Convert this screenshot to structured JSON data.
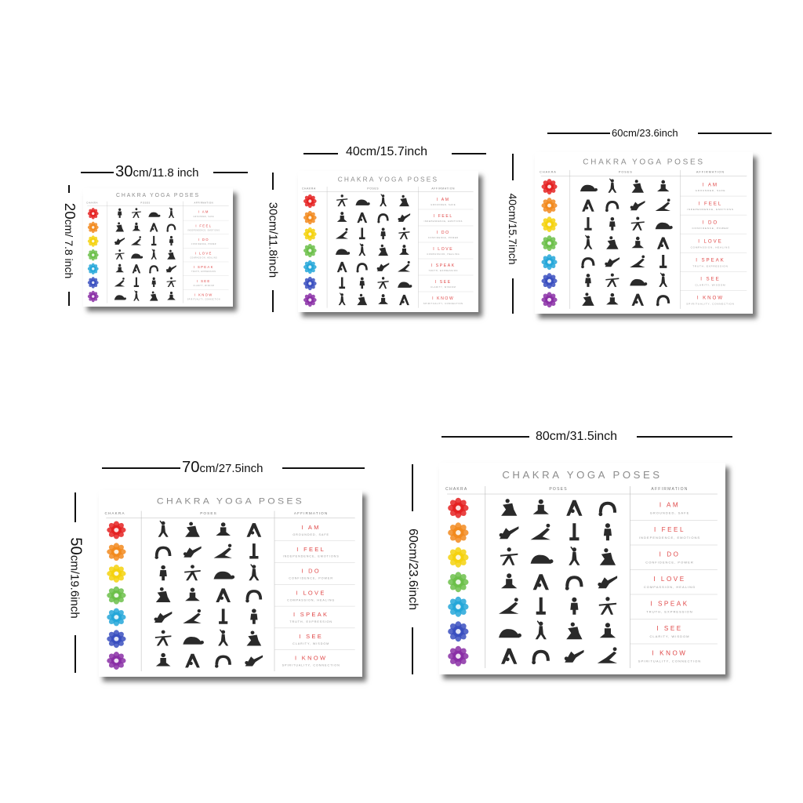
{
  "poster": {
    "title": "CHAKRA YOGA POSES",
    "headers": [
      "CHAKRA",
      "POSES",
      "AFFIRMATION"
    ],
    "rows": [
      {
        "color": "#e52222",
        "affirmation": "I AM",
        "sub": "GROUNDED, SAFE"
      },
      {
        "color": "#f28a1e",
        "affirmation": "I FEEL",
        "sub": "INDEPENDENCE, EMOTIONS"
      },
      {
        "color": "#f5d20e",
        "affirmation": "I DO",
        "sub": "CONFIDENCE, POWER"
      },
      {
        "color": "#6cc04a",
        "affirmation": "I LOVE",
        "sub": "COMPASSION, HEALING"
      },
      {
        "color": "#25a7d9",
        "affirmation": "I SPEAK",
        "sub": "TRUTH, EXPRESSION"
      },
      {
        "color": "#3a4fc0",
        "affirmation": "I SEE",
        "sub": "CLARITY, WISDOM"
      },
      {
        "color": "#8a2fa6",
        "affirmation": "I KNOW",
        "sub": "SPIRITUALITY, CONNECTION"
      }
    ]
  },
  "sizes": [
    {
      "width_cm": "30",
      "width_in": "cm/11.8 inch",
      "height_cm": "20",
      "height_in": "cm/ 7.8 inch"
    },
    {
      "width_label": "40cm/15.7inch",
      "height_label": "30cm/11.8inch"
    },
    {
      "width_label": "60cm/23.6inch",
      "height_label": "40cm/15.7inch"
    },
    {
      "width_cm": "70",
      "width_in": "cm/27.5inch",
      "height_cm": "50",
      "height_in": "cm/19.6inch"
    },
    {
      "width_label": "80cm/31.5inch",
      "height_label": "60cm/23.6inch"
    }
  ]
}
